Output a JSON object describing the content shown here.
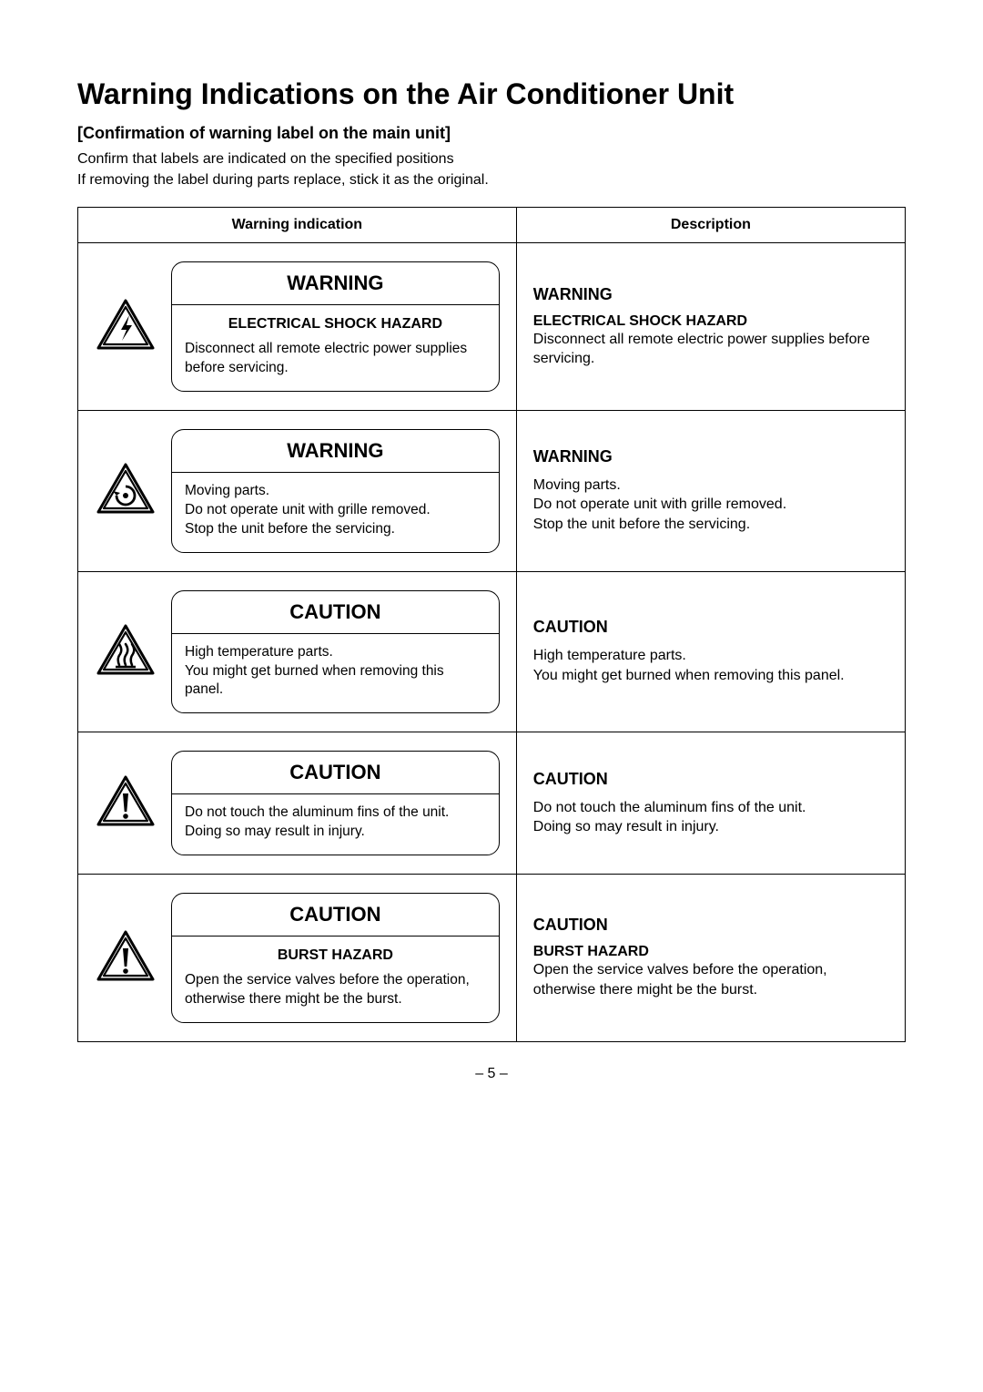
{
  "title": "Warning Indications on the Air Conditioner Unit",
  "subheading": "[Confirmation of warning label on the main unit]",
  "intro_line1": "Confirm that labels are indicated on the specified positions",
  "intro_line2": "If removing the label during parts replace, stick it as the original.",
  "table": {
    "header_col1": "Warning indication",
    "header_col2": "Description",
    "rows": [
      {
        "icon": "bolt",
        "label_title": "WARNING",
        "label_subtitle": "ELECTRICAL SHOCK HAZARD",
        "label_body": "Disconnect all remote electric power supplies before servicing.",
        "desc_title": "WARNING",
        "desc_subtitle": "ELECTRICAL SHOCK HAZARD",
        "desc_text": "Disconnect all remote electric power supplies before servicing."
      },
      {
        "icon": "rotate",
        "label_title": "WARNING",
        "label_subtitle": "",
        "label_body": "Moving parts.\nDo not operate unit with grille removed.\nStop the unit before the servicing.",
        "desc_title": "WARNING",
        "desc_subtitle": "",
        "desc_text": "Moving parts.\nDo not operate unit with grille removed.\nStop the unit before the servicing."
      },
      {
        "icon": "hot",
        "label_title": "CAUTION",
        "label_subtitle": "",
        "label_body": "High temperature parts.\nYou might get burned when removing this panel.",
        "desc_title": "CAUTION",
        "desc_subtitle": "",
        "desc_text": "High temperature parts.\nYou might get burned when removing this panel."
      },
      {
        "icon": "exclaim",
        "label_title": "CAUTION",
        "label_subtitle": "",
        "label_body": "Do not touch the aluminum fins of the unit.\nDoing so may result in injury.",
        "desc_title": "CAUTION",
        "desc_subtitle": "",
        "desc_text": "Do not touch the aluminum fins of the unit.\nDoing so may result in injury."
      },
      {
        "icon": "exclaim",
        "label_title": "CAUTION",
        "label_subtitle": "BURST HAZARD",
        "label_body": "Open the service valves before the operation, otherwise there might be the burst.",
        "desc_title": "CAUTION",
        "desc_subtitle": "BURST HAZARD",
        "desc_text": "Open the service valves before the operation, otherwise there might be the burst."
      }
    ]
  },
  "page_number": "– 5 –"
}
